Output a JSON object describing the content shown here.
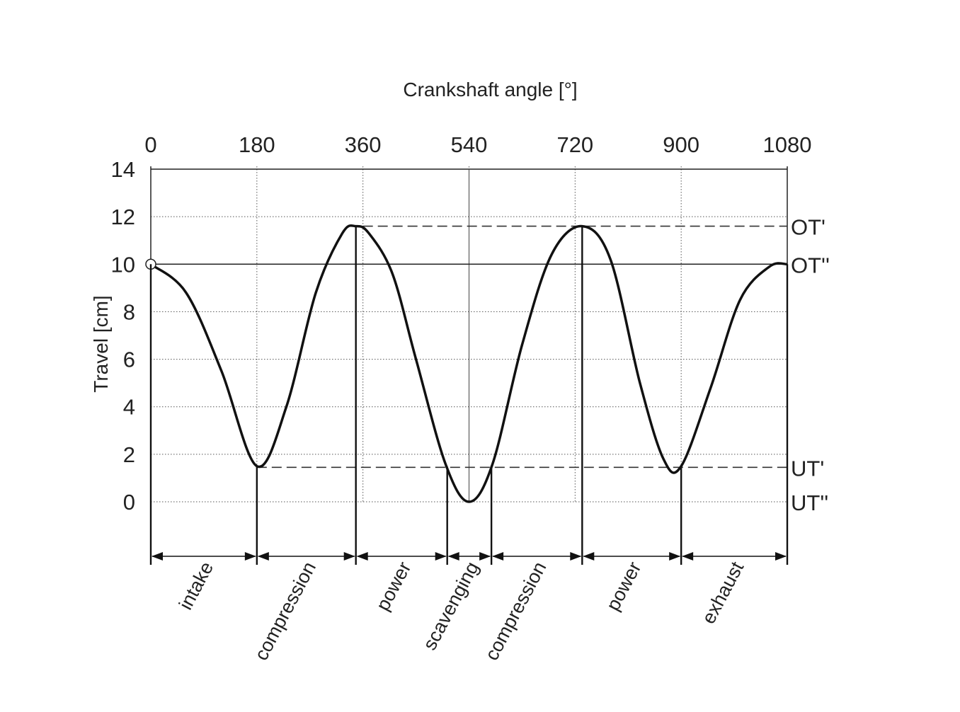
{
  "chart_data": {
    "type": "line",
    "title": "",
    "xlabel": "Crankshaft angle [°]",
    "ylabel": "Travel [cm]",
    "xlim": [
      0,
      1080
    ],
    "ylim": [
      0,
      14
    ],
    "x_ticks": [
      0,
      180,
      360,
      540,
      720,
      900,
      1080
    ],
    "x_tick_labels": [
      "0",
      "180",
      "360",
      "540",
      "720",
      "900",
      "1080"
    ],
    "y_ticks": [
      0,
      2,
      4,
      6,
      8,
      10,
      12,
      14
    ],
    "y_tick_labels": [
      "0",
      "2",
      "4",
      "6",
      "8",
      "10",
      "12",
      "14"
    ],
    "x_axis_position": "top",
    "grid": true,
    "series": [
      {
        "x": [
          0,
          60,
          120,
          180,
          230,
          280,
          325,
          348,
          370,
          410,
          450,
          500,
          540,
          580,
          630,
          680,
          732,
          780,
          830,
          870,
          900,
          950,
          1000,
          1050,
          1080
        ],
        "values": [
          10,
          8.8,
          5.5,
          1.5,
          4.0,
          8.8,
          11.3,
          11.6,
          11.3,
          9.6,
          6.0,
          1.6,
          0,
          1.6,
          6.6,
          10.4,
          11.6,
          10.2,
          5.0,
          1.8,
          1.5,
          4.8,
          8.5,
          9.9,
          10
        ]
      }
    ],
    "start_marker": {
      "x": 0,
      "y": 10
    },
    "reference_lines": [
      {
        "label": "OT'",
        "y": 11.6,
        "style": "dashed",
        "from_x": 360
      },
      {
        "label": "OT''",
        "y": 10,
        "style": "solid",
        "from_x": 0
      },
      {
        "label": "UT'",
        "y": 1.45,
        "style": "dashed",
        "from_x": 180
      },
      {
        "label": "UT''",
        "y": 0,
        "style": "none",
        "from_x": 540
      }
    ],
    "phase_boundaries": [
      0,
      180,
      348,
      503,
      578,
      732,
      900,
      1080
    ],
    "phases": [
      {
        "label": "intake",
        "start": 0,
        "end": 180
      },
      {
        "label": "compression",
        "start": 180,
        "end": 348
      },
      {
        "label": "power",
        "start": 348,
        "end": 503
      },
      {
        "label": "scavenging",
        "start": 503,
        "end": 578
      },
      {
        "label": "compression",
        "start": 578,
        "end": 732
      },
      {
        "label": "power",
        "start": 732,
        "end": 900
      },
      {
        "label": "exhaust",
        "start": 900,
        "end": 1080
      }
    ]
  }
}
